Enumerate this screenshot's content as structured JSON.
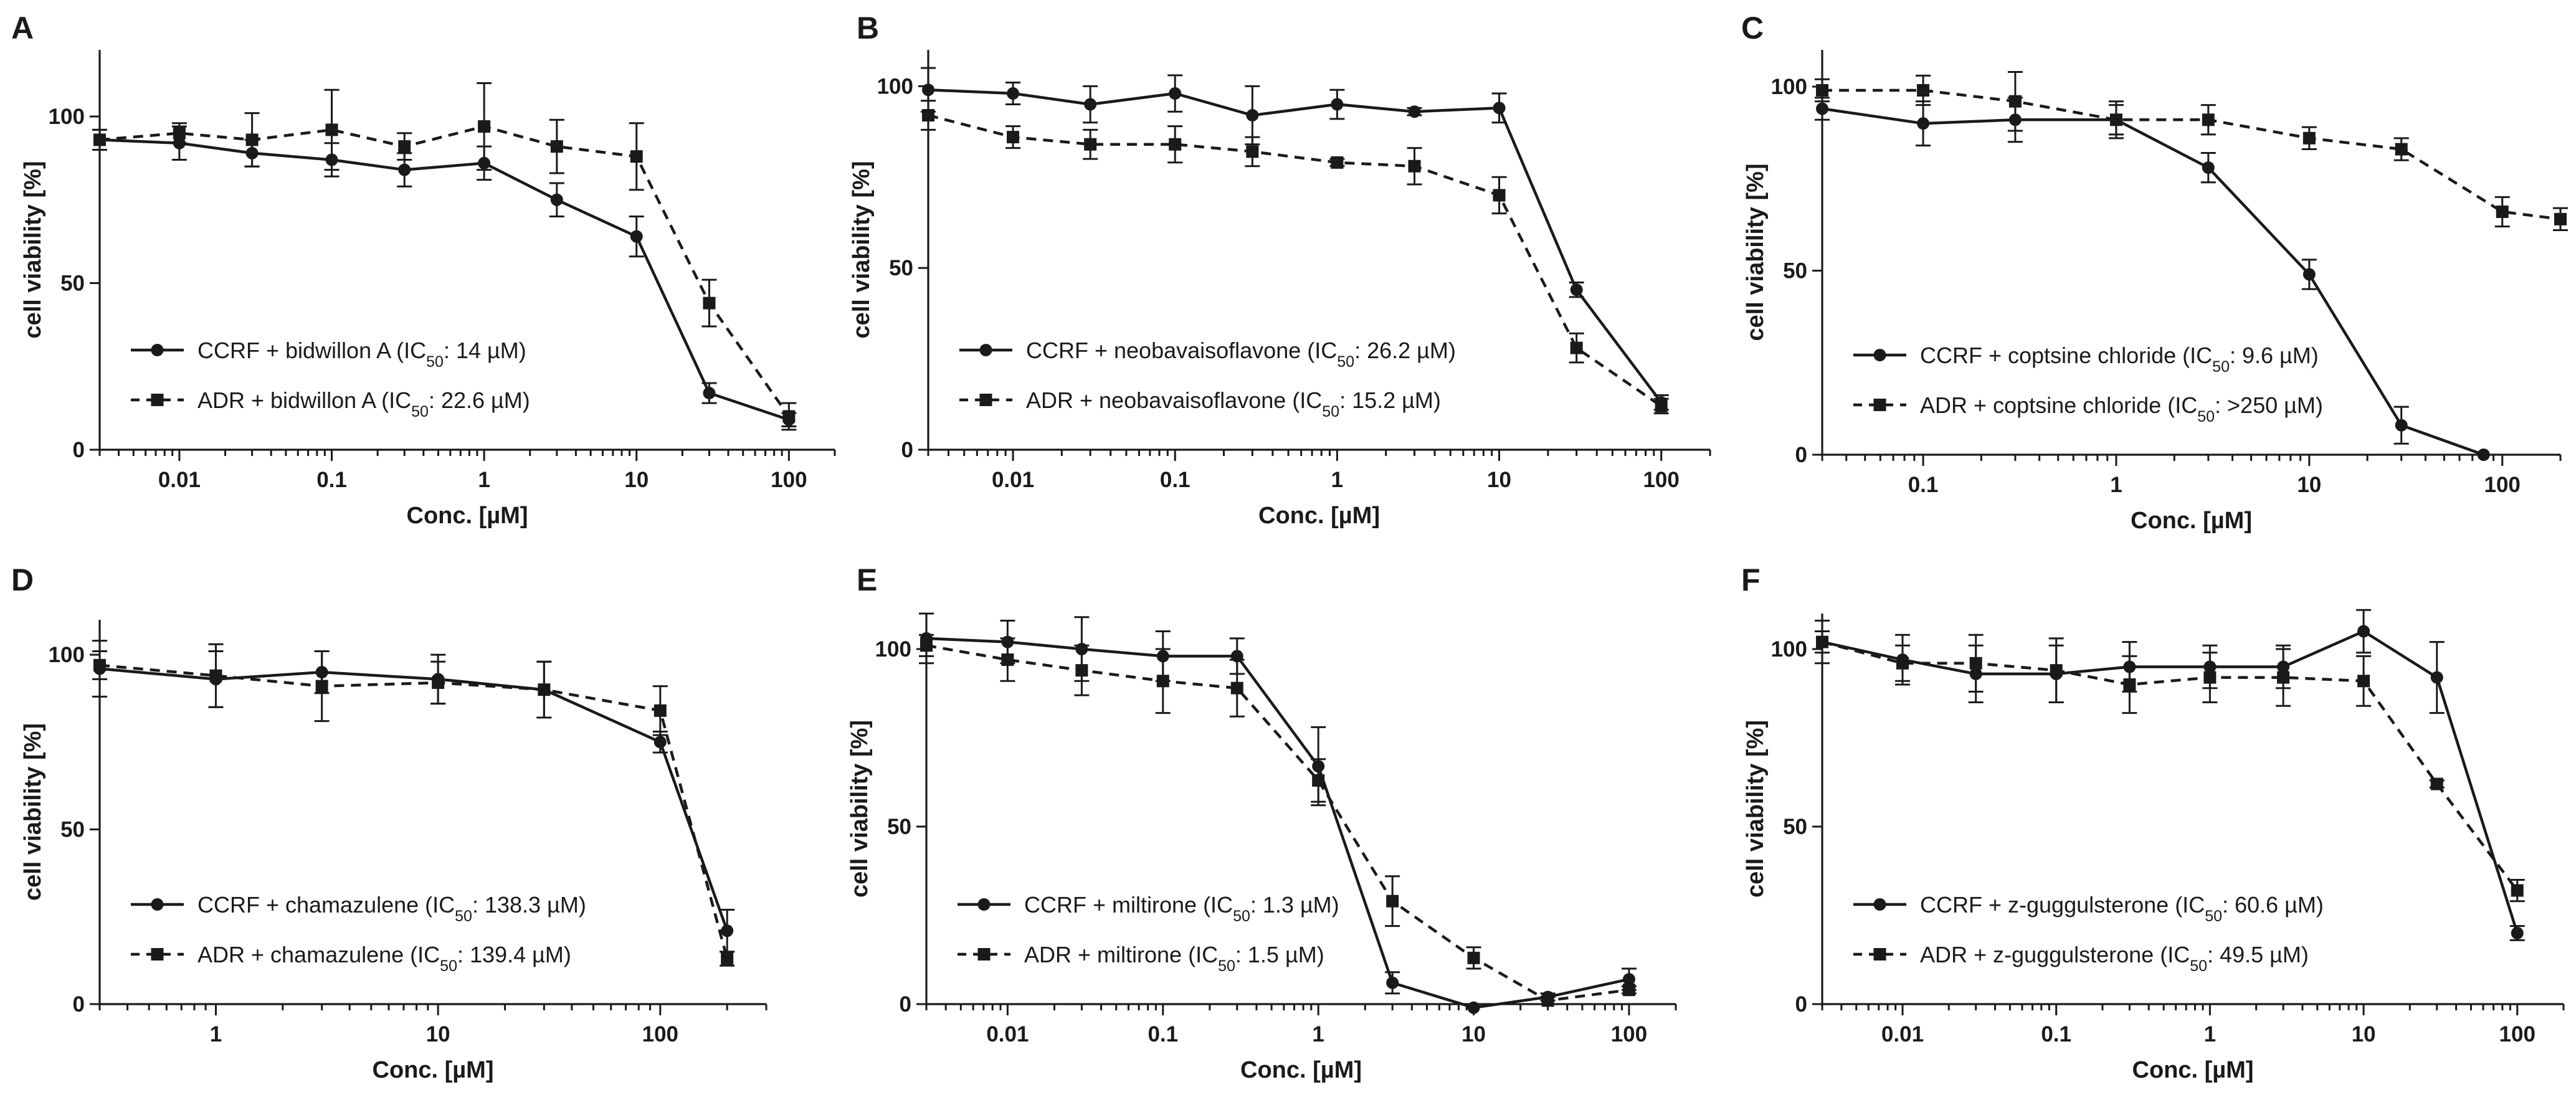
{
  "figure": {
    "background": "#ffffff",
    "ink": "#1a1a1a"
  },
  "chart_data": [
    {
      "panel": "A",
      "type": "line",
      "xlabel": "Conc. [µM]",
      "ylabel": "cell viability [%]",
      "x_scale": "log",
      "xlim": [
        0.003,
        200
      ],
      "ylim": [
        0,
        120
      ],
      "xticks": [
        0.01,
        0.1,
        1,
        10,
        100
      ],
      "xticklabels": [
        "0.01",
        "0.1",
        "1",
        "10",
        "100"
      ],
      "yticks": [
        0,
        50,
        100
      ],
      "legend_position": "lower-left",
      "series": [
        {
          "name": "CCRF + bidwillon A",
          "ic50": "14 µM",
          "style": "solid",
          "marker": "circle",
          "x": [
            0.003,
            0.01,
            0.03,
            0.1,
            0.3,
            1,
            3,
            10,
            30,
            100
          ],
          "y": [
            93,
            92,
            89,
            87,
            84,
            86,
            75,
            64,
            17,
            9
          ],
          "err": [
            3,
            5,
            4,
            5,
            5,
            5,
            5,
            6,
            3,
            2
          ]
        },
        {
          "name": "ADR + bidwillon A",
          "ic50": "22.6 µM",
          "style": "dashed",
          "marker": "square",
          "x": [
            0.003,
            0.01,
            0.03,
            0.1,
            0.3,
            1,
            3,
            10,
            30,
            100
          ],
          "y": [
            93,
            95,
            93,
            96,
            91,
            97,
            91,
            88,
            44,
            10
          ],
          "err": [
            3,
            3,
            8,
            12,
            4,
            13,
            8,
            10,
            7,
            4
          ]
        }
      ]
    },
    {
      "panel": "B",
      "type": "line",
      "xlabel": "Conc. [µM]",
      "ylabel": "cell viability [%]",
      "x_scale": "log",
      "xlim": [
        0.003,
        200
      ],
      "ylim": [
        0,
        110
      ],
      "xticks": [
        0.01,
        0.1,
        1,
        10,
        100
      ],
      "xticklabels": [
        "0.01",
        "0.1",
        "1",
        "10",
        "100"
      ],
      "yticks": [
        0,
        50,
        100
      ],
      "legend_position": "lower-left",
      "series": [
        {
          "name": "CCRF + neobavaisoflavone",
          "ic50": "26.2 µM",
          "style": "solid",
          "marker": "circle",
          "x": [
            0.003,
            0.01,
            0.03,
            0.1,
            0.3,
            1,
            3,
            10,
            30,
            100
          ],
          "y": [
            99,
            98,
            95,
            98,
            92,
            95,
            93,
            94,
            44,
            13
          ],
          "err": [
            6,
            3,
            5,
            5,
            8,
            4,
            1,
            4,
            2,
            2
          ]
        },
        {
          "name": "ADR + neobavaisoflavone",
          "ic50": "15.2 µM",
          "style": "dashed",
          "marker": "square",
          "x": [
            0.003,
            0.01,
            0.03,
            0.1,
            0.3,
            1,
            3,
            10,
            30,
            100
          ],
          "y": [
            92,
            86,
            84,
            84,
            82,
            79,
            78,
            70,
            28,
            12
          ],
          "err": [
            4,
            3,
            4,
            5,
            4,
            1,
            5,
            5,
            4,
            2
          ]
        }
      ]
    },
    {
      "panel": "C",
      "type": "line",
      "xlabel": "Conc. [µM]",
      "ylabel": "cell viability [%]",
      "x_scale": "log",
      "xlim": [
        0.03,
        200
      ],
      "ylim": [
        0,
        110
      ],
      "xticks": [
        0.1,
        1,
        10,
        100
      ],
      "xticklabels": [
        "0.1",
        "1",
        "10",
        "100"
      ],
      "yticks": [
        0,
        50,
        100
      ],
      "legend_position": "lower-left",
      "series": [
        {
          "name": "CCRF + coptsine chloride",
          "ic50": "9.6 µM",
          "style": "solid",
          "marker": "circle",
          "x": [
            0.03,
            0.1,
            0.3,
            1,
            3,
            10,
            30,
            80
          ],
          "y": [
            94,
            90,
            91,
            91,
            78,
            49,
            8,
            0
          ],
          "err": [
            3,
            6,
            6,
            5,
            4,
            4,
            5,
            0
          ]
        },
        {
          "name": "ADR + coptsine chloride",
          "ic50": ">250 µM",
          "style": "dashed",
          "marker": "square",
          "x": [
            0.03,
            0.1,
            0.3,
            1,
            3,
            10,
            30,
            100,
            200
          ],
          "y": [
            99,
            99,
            96,
            91,
            91,
            86,
            83,
            66,
            64
          ],
          "err": [
            3,
            4,
            8,
            4,
            4,
            3,
            3,
            4,
            3
          ]
        }
      ]
    },
    {
      "panel": "D",
      "type": "line",
      "xlabel": "Conc. [µM]",
      "ylabel": "cell viability [%]",
      "x_scale": "log",
      "xlim": [
        0.3,
        300
      ],
      "ylim": [
        0,
        110
      ],
      "xticks": [
        1,
        10,
        100
      ],
      "xticklabels": [
        "1",
        "10",
        "100"
      ],
      "yticks": [
        0,
        50,
        100
      ],
      "legend_position": "lower-left",
      "series": [
        {
          "name": "CCRF + chamazulene",
          "ic50": "138.3 µM",
          "style": "solid",
          "marker": "circle",
          "x": [
            0.3,
            1,
            3,
            10,
            30,
            100,
            200
          ],
          "y": [
            96,
            93,
            95,
            93,
            90,
            75,
            21
          ],
          "err": [
            8,
            8,
            6,
            7,
            8,
            3,
            6
          ]
        },
        {
          "name": "ADR + chamazulene",
          "ic50": "139.4 µM",
          "style": "dashed",
          "marker": "square",
          "x": [
            0.3,
            1,
            3,
            10,
            30,
            100,
            200
          ],
          "y": [
            97,
            94,
            91,
            92,
            90,
            84,
            13
          ],
          "err": [
            4,
            9,
            10,
            6,
            8,
            7,
            2
          ]
        }
      ]
    },
    {
      "panel": "E",
      "type": "line",
      "xlabel": "Conc. [µM]",
      "ylabel": "cell viability [%]",
      "x_scale": "log",
      "xlim": [
        0.003,
        200
      ],
      "ylim": [
        0,
        110
      ],
      "xticks": [
        0.01,
        0.1,
        1,
        10,
        100
      ],
      "xticklabels": [
        "0.01",
        "0.1",
        "1",
        "10",
        "100"
      ],
      "yticks": [
        0,
        50,
        100
      ],
      "legend_position": "lower-left",
      "series": [
        {
          "name": "CCRF + miltirone",
          "ic50": "1.3 µM",
          "style": "solid",
          "marker": "circle",
          "x": [
            0.003,
            0.01,
            0.03,
            0.1,
            0.3,
            1,
            3,
            10,
            30,
            100
          ],
          "y": [
            103,
            102,
            100,
            98,
            98,
            67,
            6,
            -1,
            2,
            7
          ],
          "err": [
            7,
            6,
            9,
            7,
            5,
            11,
            3,
            0,
            1,
            3
          ]
        },
        {
          "name": "ADR + miltirone",
          "ic50": "1.5 µM",
          "style": "dashed",
          "marker": "square",
          "x": [
            0.003,
            0.01,
            0.03,
            0.1,
            0.3,
            1,
            3,
            10,
            30,
            100
          ],
          "y": [
            101,
            97,
            94,
            91,
            89,
            63,
            29,
            13,
            1,
            4
          ],
          "err": [
            3,
            6,
            7,
            9,
            8,
            6,
            7,
            3,
            1,
            1
          ]
        }
      ]
    },
    {
      "panel": "F",
      "type": "line",
      "xlabel": "Conc. [µM]",
      "ylabel": "cell viability [%]",
      "x_scale": "log",
      "xlim": [
        0.003,
        200
      ],
      "ylim": [
        0,
        110
      ],
      "xticks": [
        0.01,
        0.1,
        1,
        10,
        100
      ],
      "xticklabels": [
        "0.01",
        "0.1",
        "1",
        "10",
        "100"
      ],
      "yticks": [
        0,
        50,
        100
      ],
      "legend_position": "lower-left",
      "series": [
        {
          "name": "CCRF + z-guggulsterone",
          "ic50": "60.6 µM",
          "style": "solid",
          "marker": "circle",
          "x": [
            0.003,
            0.01,
            0.03,
            0.1,
            0.3,
            1,
            3,
            10,
            30,
            100
          ],
          "y": [
            102,
            97,
            93,
            93,
            95,
            95,
            95,
            105,
            92,
            20
          ],
          "err": [
            6,
            7,
            8,
            8,
            7,
            6,
            6,
            6,
            10,
            2
          ]
        },
        {
          "name": "ADR + z-guggulsterone",
          "ic50": "49.5 µM",
          "style": "dashed",
          "marker": "square",
          "x": [
            0.003,
            0.01,
            0.03,
            0.1,
            0.3,
            1,
            3,
            10,
            30,
            100
          ],
          "y": [
            102,
            96,
            96,
            94,
            90,
            92,
            92,
            91,
            62,
            32
          ],
          "err": [
            3,
            5,
            8,
            9,
            8,
            7,
            8,
            7,
            1,
            3
          ]
        }
      ]
    }
  ]
}
